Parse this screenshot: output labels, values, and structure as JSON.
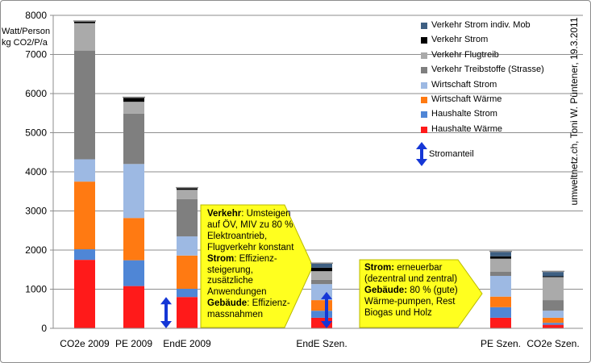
{
  "chart_data": {
    "type": "bar",
    "stacked": true,
    "ylabel_lines": [
      "Watt/Person",
      "kg CO2/P/a"
    ],
    "yticks": [
      0,
      1000,
      2000,
      3000,
      4000,
      5000,
      6000,
      7000,
      8000
    ],
    "ylim": [
      0,
      8000
    ],
    "grid": true,
    "categories": [
      "CO2e 2009",
      "PE 2009",
      "EndE 2009",
      "EndE Szen.",
      "PE Szen.",
      "CO2e Szen."
    ],
    "series": [
      {
        "name": "Haushalte Wärme",
        "color": "#ff1a1a",
        "values": [
          1750,
          1080,
          800,
          270,
          270,
          90
        ]
      },
      {
        "name": "Haushalte Strom",
        "color": "#4f86d6",
        "values": [
          270,
          660,
          210,
          180,
          270,
          50
        ]
      },
      {
        "name": "Wirtschaft Wärme",
        "color": "#ff7a12",
        "values": [
          1730,
          1080,
          850,
          270,
          270,
          130
        ]
      },
      {
        "name": "Wirtschaft Strom",
        "color": "#9db9e3",
        "values": [
          570,
          1380,
          490,
          410,
          530,
          180
        ]
      },
      {
        "name": "Verkehr Treibstoffe (Strasse)",
        "color": "#7f7f7f",
        "values": [
          2780,
          1290,
          950,
          110,
          110,
          270
        ]
      },
      {
        "name": "Verkehr Flugtreib",
        "color": "#aaaaaa",
        "values": [
          700,
          300,
          240,
          220,
          330,
          590
        ]
      },
      {
        "name": "Verkehr Strom",
        "color": "#000000",
        "values": [
          40,
          100,
          40,
          90,
          60,
          20
        ]
      },
      {
        "name": "Verkehr Strom indiv. Mob",
        "color": "#3e5f82",
        "values": [
          0,
          0,
          0,
          100,
          110,
          110
        ]
      }
    ],
    "stromanteil_label": "Stromanteil",
    "stromanteil_arrows": [
      {
        "category": "EndE 2009",
        "from": 0,
        "to": 800
      },
      {
        "category": "EndE Szen.",
        "from": 0,
        "to": 930
      }
    ],
    "arrow_color": "#1537d6",
    "callout_color": "#ffff1f"
  },
  "credit": "umweltnetz.ch, Toni W. Püntener, 19.3.2011",
  "callouts": {
    "verkehr": {
      "lines": [
        [
          {
            "b": "Verkehr"
          },
          {
            "t": ": Umsteigen"
          }
        ],
        [
          {
            "t": "auf ÖV, MIV zu 80 %"
          }
        ],
        [
          {
            "t": "Elektroantrieb,"
          }
        ],
        [
          {
            "t": "Flugverkehr konstant"
          }
        ],
        [
          {
            "b": "Strom"
          },
          {
            "t": ": Effizienz-"
          }
        ],
        [
          {
            "t": "steigerung,"
          }
        ],
        [
          {
            "t": "zusätzliche"
          }
        ],
        [
          {
            "t": "Anwendungen"
          }
        ],
        [
          {
            "b": "Gebäude"
          },
          {
            "t": ": Effizienz-"
          }
        ],
        [
          {
            "t": "massnahmen"
          }
        ]
      ]
    },
    "strom": {
      "lines": [
        [
          {
            "b": "Strom:"
          },
          {
            "t": " erneuerbar"
          }
        ],
        [
          {
            "t": "(dezentral und zentral)"
          }
        ],
        [
          {
            "b": "Gebäude:"
          },
          {
            "t": " 80 % (gute)"
          }
        ],
        [
          {
            "t": "Wärme-pumpen, Rest"
          }
        ],
        [
          {
            "t": "Biogas und Holz"
          }
        ]
      ]
    }
  }
}
